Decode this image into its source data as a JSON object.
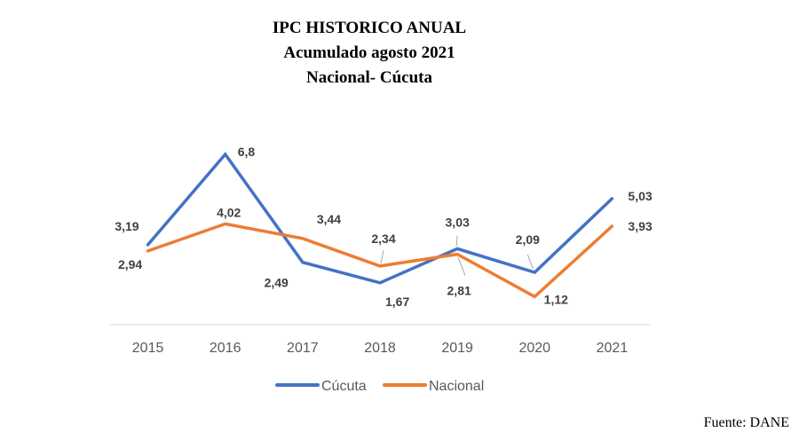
{
  "title_lines": [
    "IPC HISTORICO ANUAL",
    "Acumulado agosto 2021",
    "Nacional- Cúcuta"
  ],
  "source": "Fuente: DANE",
  "colors": {
    "cucuta": "#4472C4",
    "nacional": "#ED7D31",
    "axis": "#D9D9D9",
    "label": "#404040",
    "tick": "#595959"
  },
  "chart_data": {
    "type": "line",
    "title": "IPC HISTORICO ANUAL",
    "categories": [
      "2015",
      "2016",
      "2017",
      "2018",
      "2019",
      "2020",
      "2021"
    ],
    "series": [
      {
        "name": "Cúcuta",
        "values": [
          3.19,
          6.8,
          2.49,
          1.67,
          3.03,
          2.09,
          5.03
        ],
        "labels": [
          "3,19",
          "6,8",
          "2,49",
          "1,67",
          "3,03",
          "2,09",
          "5,03"
        ],
        "color": "#4472C4"
      },
      {
        "name": "Nacional",
        "values": [
          2.94,
          4.02,
          3.44,
          2.34,
          2.81,
          1.12,
          3.93
        ],
        "labels": [
          "2,94",
          "4,02",
          "3,44",
          "2,34",
          "2,81",
          "1,12",
          "3,93"
        ],
        "color": "#ED7D31"
      }
    ],
    "xlabel": "",
    "ylabel": "",
    "ylim": [
      0,
      8
    ],
    "grid": false,
    "legend_position": "bottom"
  }
}
